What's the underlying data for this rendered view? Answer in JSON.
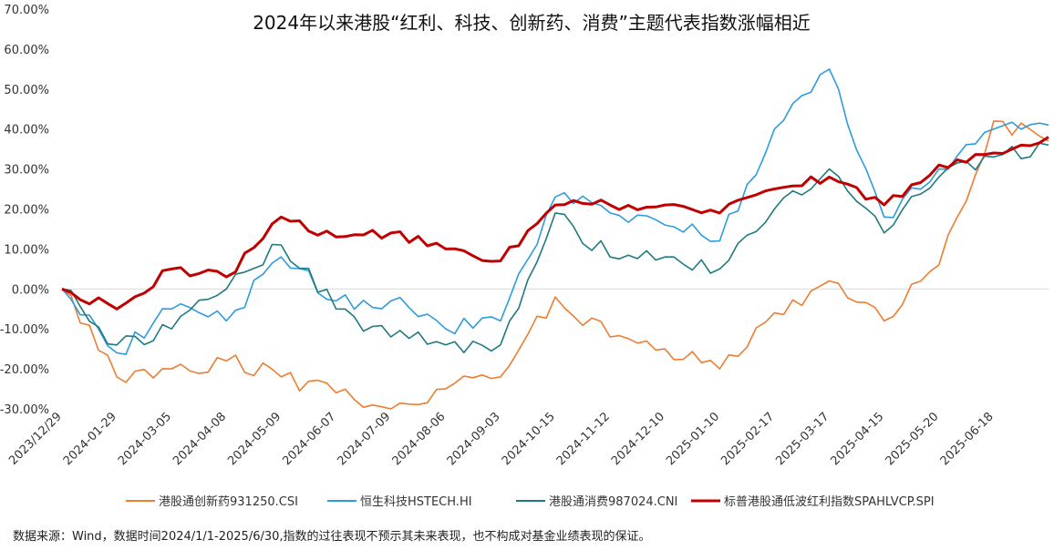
{
  "chart_data": {
    "type": "line",
    "title": "2024年以来港股“红利、科技、创新药、消费”主题代表指数涨幅相近",
    "xlabel": "",
    "ylabel": "",
    "ylim": [
      -30,
      70
    ],
    "y_ticks": [
      "70.00%",
      "60.00%",
      "50.00%",
      "40.00%",
      "30.00%",
      "20.00%",
      "10.00%",
      "0.00%",
      "-10.00%",
      "-20.00%",
      "-30.00%"
    ],
    "x_ticks": [
      "2023/12/29",
      "2024-01-29",
      "2024-03-05",
      "2024-04-08",
      "2024-05-09",
      "2024-06-07",
      "2024-07-09",
      "2024-08-06",
      "2024-09-03",
      "2024-10-15",
      "2024-11-12",
      "2024-12-10",
      "2025-01-10",
      "2025-02-17",
      "2025-03-17",
      "2025-04-15",
      "2025-05-20",
      "2025-06-18"
    ],
    "x": [
      "2023/12/29",
      "2024-01-29",
      "2024-03-05",
      "2024-04-08",
      "2024-05-09",
      "2024-06-07",
      "2024-07-09",
      "2024-08-06",
      "2024-09-03",
      "2024-10-15",
      "2024-11-12",
      "2024-12-10",
      "2025-01-10",
      "2025-02-17",
      "2025-03-17",
      "2025-04-15",
      "2025-05-20",
      "2025-06-18",
      "2025-06-30"
    ],
    "grid": false,
    "legend_position": "bottom",
    "series": [
      {
        "name": "港股通创新药931250.CSI",
        "color": "#ED7D31",
        "values": [
          0,
          -22,
          -20,
          -18,
          -22,
          -26,
          -30,
          -25,
          -22,
          -2,
          -12,
          -15,
          -20,
          -6,
          2,
          -8,
          6,
          42,
          37
        ]
      },
      {
        "name": "恒生科技HSTECH.HI",
        "color": "#2E9BDE",
        "values": [
          0,
          -16,
          -5,
          -8,
          8,
          -3,
          -3,
          -10,
          -8,
          23,
          19,
          16,
          12,
          40,
          55,
          18,
          30,
          40,
          41
        ]
      },
      {
        "name": "港股通消费987024.CNI",
        "color": "#1F7A80",
        "values": [
          0,
          -14,
          -10,
          0,
          11,
          -5,
          -12,
          -14,
          -14,
          19,
          8,
          8,
          5,
          20,
          30,
          14,
          28,
          33,
          36
        ]
      },
      {
        "name": "标普港股通低波红利指数SPAHLVCP.SPI",
        "color": "#C00000",
        "values": [
          0,
          -5,
          5,
          3,
          18,
          13,
          14,
          10,
          7,
          21,
          21,
          21,
          19,
          25,
          28,
          21,
          31,
          34,
          38
        ]
      }
    ]
  },
  "footnote": "数据来源：Wind，数据时间2024/1/1-2025/6/30,指数的过往表现不预示其未来表现，也不构成对基金业绩表现的保证。"
}
